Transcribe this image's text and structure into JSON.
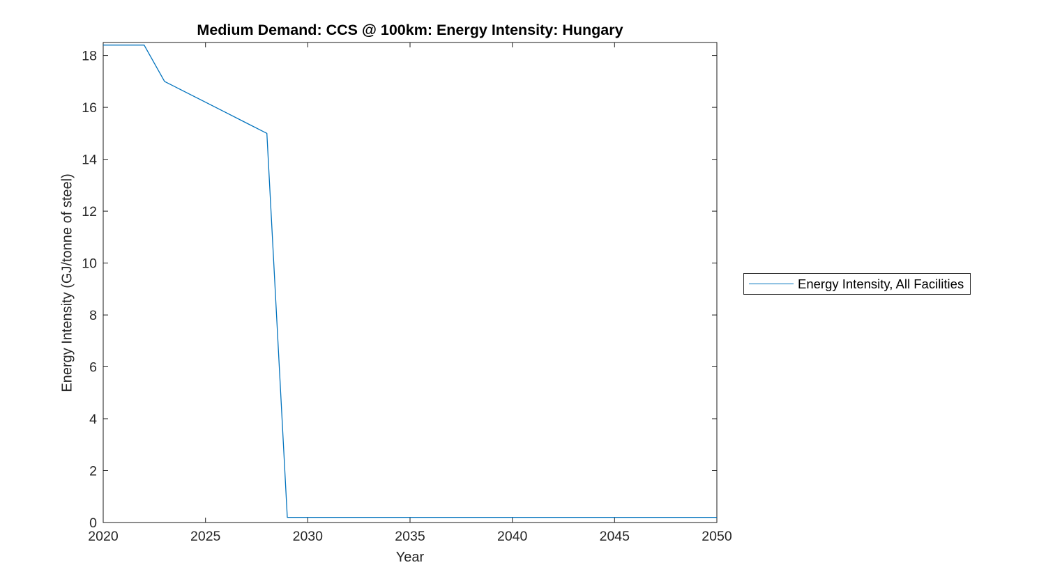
{
  "chart_data": {
    "type": "line",
    "title": "Medium Demand: CCS @ 100km: Energy Intensity: Hungary",
    "xlabel": "Year",
    "ylabel": "Energy Intensity (GJ/tonne of steel)",
    "xlim": [
      2020,
      2050
    ],
    "ylim": [
      0,
      18.5
    ],
    "xticks": [
      2020,
      2025,
      2030,
      2035,
      2040,
      2045,
      2050
    ],
    "yticks": [
      0,
      2,
      4,
      6,
      8,
      10,
      12,
      14,
      16,
      18
    ],
    "grid": false,
    "legend": {
      "position": "right-outside",
      "entries": [
        "Energy Intensity, All Facilities"
      ]
    },
    "colors": {
      "line": "#0072BD",
      "axis": "#1a1a1a",
      "text": "#262626",
      "background": "#ffffff"
    },
    "series": [
      {
        "name": "Energy Intensity, All Facilities",
        "x": [
          2020,
          2021,
          2022,
          2023,
          2024,
          2025,
          2026,
          2027,
          2028,
          2029,
          2030,
          2031,
          2032,
          2033,
          2034,
          2035,
          2036,
          2037,
          2038,
          2039,
          2040,
          2041,
          2042,
          2043,
          2044,
          2045,
          2046,
          2047,
          2048,
          2049,
          2050
        ],
        "y": [
          18.4,
          18.4,
          18.4,
          17,
          16.6,
          16.2,
          15.8,
          15.4,
          15,
          0.2,
          0.2,
          0.2,
          0.2,
          0.2,
          0.2,
          0.2,
          0.2,
          0.2,
          0.2,
          0.2,
          0.2,
          0.2,
          0.2,
          0.2,
          0.2,
          0.2,
          0.2,
          0.2,
          0.2,
          0.2,
          0.2
        ]
      }
    ]
  }
}
